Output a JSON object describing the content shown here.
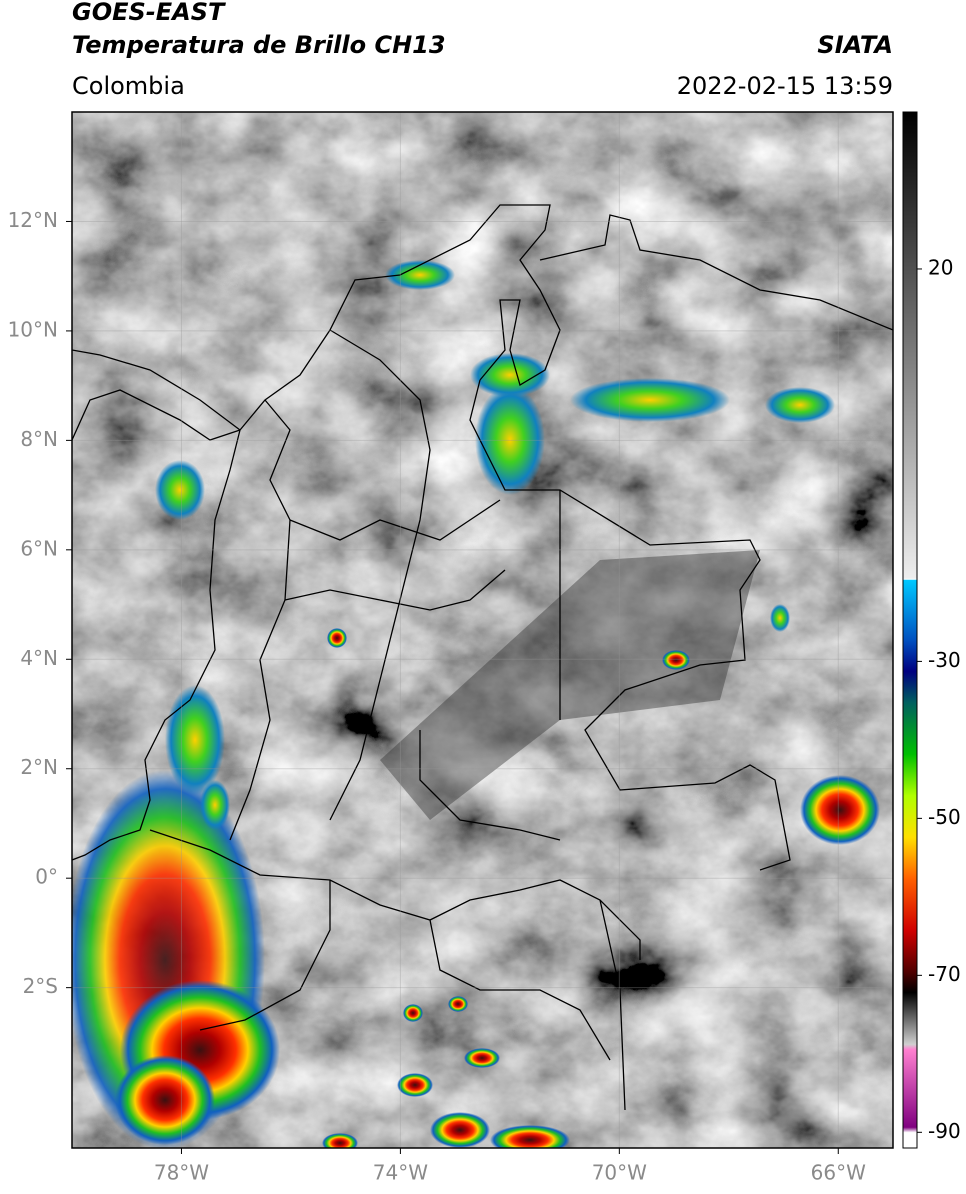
{
  "header": {
    "title": "GOES-EAST",
    "subtitle": "Temperatura de Brillo CH13",
    "source": "SIATA",
    "region": "Colombia",
    "timestamp": "2022-02-15 13:59"
  },
  "map": {
    "xlim": [
      -80,
      -65
    ],
    "ylim": [
      -4.93,
      14
    ],
    "xticks": [
      {
        "value": -78,
        "label": "78°W"
      },
      {
        "value": -74,
        "label": "74°W"
      },
      {
        "value": -70,
        "label": "70°W"
      },
      {
        "value": -66,
        "label": "66°W"
      }
    ],
    "yticks": [
      {
        "value": 12,
        "label": "12°N"
      },
      {
        "value": 10,
        "label": "10°N"
      },
      {
        "value": 8,
        "label": "8°N"
      },
      {
        "value": 6,
        "label": "6°N"
      },
      {
        "value": 4,
        "label": "4°N"
      },
      {
        "value": 2,
        "label": "2°N"
      },
      {
        "value": 0,
        "label": "0°"
      },
      {
        "value": -2,
        "label": "2°S"
      }
    ]
  },
  "colorbar": {
    "lim": [
      40,
      -92
    ],
    "ticks": [
      20,
      -30,
      -50,
      -70,
      -90
    ]
  }
}
